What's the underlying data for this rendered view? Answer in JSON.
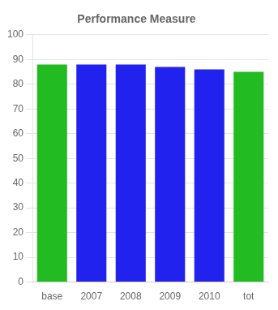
{
  "chart_data": {
    "type": "bar",
    "title": "Performance Measure",
    "categories": [
      "base",
      "2007",
      "2008",
      "2009",
      "2010",
      "tot"
    ],
    "values": [
      88.0,
      88.0,
      88.0,
      87.0,
      86.0,
      85.0
    ],
    "colors": [
      "#22bb22",
      "#2222ee",
      "#2222ee",
      "#2222ee",
      "#2222ee",
      "#22bb22"
    ],
    "ylim": [
      0,
      100
    ],
    "yticks": [
      0,
      10,
      20,
      30,
      40,
      50,
      60,
      70,
      80,
      90,
      100
    ],
    "grid": true
  }
}
